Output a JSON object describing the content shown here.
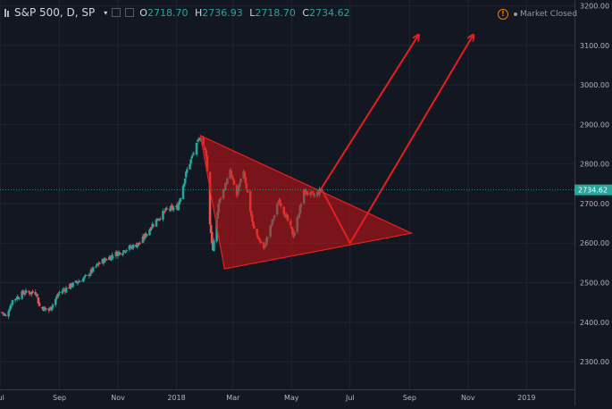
{
  "header": {
    "symbol": "S&P 500, D, SP",
    "caret": "▾",
    "open_label": "O",
    "open": "2718.70",
    "high_label": "H",
    "high": "2736.93",
    "low_label": "L",
    "low": "2718.70",
    "close_label": "C",
    "close": "2734.62"
  },
  "status": {
    "alert_glyph": "!",
    "text": "Market Closed"
  },
  "price_badge": "2734.62",
  "colors": {
    "background": "#131722",
    "up": "#26a69a",
    "down": "#ef5350",
    "drawing": "#e51f1f",
    "badge": "#26a69a"
  },
  "chart_data": {
    "type": "candlestick",
    "y_axis": {
      "min": 2230,
      "max": 3215,
      "ticks": [
        2300,
        2400,
        2500,
        2600,
        2700,
        2800,
        2900,
        3000,
        3100,
        3200
      ],
      "tick_labels": [
        "2300.00",
        "2400.00",
        "2500.00",
        "2600.00",
        "2700.00",
        "2800.00",
        "2900.00",
        "3000.00",
        "3100.00",
        "3200.00"
      ]
    },
    "x_axis": {
      "start": "2017-07-01",
      "end": "2019-02-20",
      "ticks": [
        "2017-07-01",
        "2017-09-01",
        "2017-11-01",
        "2018-01-01",
        "2018-03-01",
        "2018-05-01",
        "2018-07-01",
        "2018-09-01",
        "2018-11-01",
        "2019-01-01"
      ],
      "tick_labels": [
        "Jul",
        "Sep",
        "Nov",
        "2018",
        "Mar",
        "May",
        "Jul",
        "Sep",
        "Nov",
        "2019"
      ]
    },
    "grid": true,
    "last_price": 2734.62,
    "price_path": [
      [
        "2017-07-03",
        2425
      ],
      [
        "2017-07-07",
        2415
      ],
      [
        "2017-07-14",
        2455
      ],
      [
        "2017-07-26",
        2475
      ],
      [
        "2017-08-08",
        2475
      ],
      [
        "2017-08-11",
        2440
      ],
      [
        "2017-08-21",
        2430
      ],
      [
        "2017-08-25",
        2445
      ],
      [
        "2017-09-01",
        2475
      ],
      [
        "2017-09-15",
        2495
      ],
      [
        "2017-09-29",
        2515
      ],
      [
        "2017-10-13",
        2550
      ],
      [
        "2017-10-27",
        2570
      ],
      [
        "2017-11-10",
        2585
      ],
      [
        "2017-11-24",
        2600
      ],
      [
        "2017-12-08",
        2650
      ],
      [
        "2017-12-22",
        2685
      ],
      [
        "2018-01-02",
        2690
      ],
      [
        "2018-01-12",
        2785
      ],
      [
        "2018-01-26",
        2872
      ],
      [
        "2018-02-01",
        2825
      ],
      [
        "2018-02-05",
        2650
      ],
      [
        "2018-02-08",
        2580
      ],
      [
        "2018-02-14",
        2700
      ],
      [
        "2018-02-26",
        2780
      ],
      [
        "2018-03-05",
        2720
      ],
      [
        "2018-03-12",
        2785
      ],
      [
        "2018-03-22",
        2640
      ],
      [
        "2018-04-02",
        2585
      ],
      [
        "2018-04-13",
        2670
      ],
      [
        "2018-04-18",
        2710
      ],
      [
        "2018-05-03",
        2620
      ],
      [
        "2018-05-14",
        2730
      ],
      [
        "2018-05-25",
        2720
      ],
      [
        "2018-06-01",
        2734.62
      ]
    ],
    "annotations": {
      "triangle": [
        [
          "2018-01-26",
          2872
        ],
        [
          "2018-02-20",
          2535
        ],
        [
          "2018-09-03",
          2625
        ]
      ],
      "zigzag": [
        [
          "2018-06-01",
          2738
        ],
        [
          "2018-07-01",
          2600
        ],
        [
          "2018-11-06",
          3125
        ]
      ],
      "arrow": [
        [
          "2018-06-01",
          2738
        ],
        [
          "2018-09-10",
          3125
        ]
      ]
    }
  }
}
